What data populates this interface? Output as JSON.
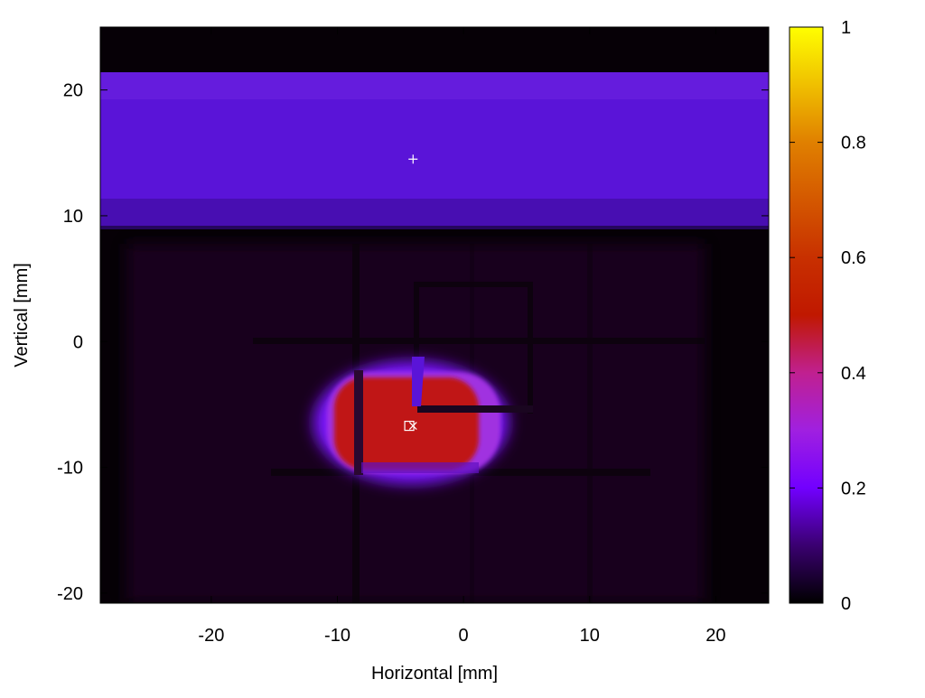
{
  "chart_data": {
    "type": "heatmap",
    "title": "",
    "xlabel": "Horizontal [mm]",
    "ylabel": "Vertical [mm]",
    "xlim": [
      -28.8,
      24.2
    ],
    "ylim": [
      -20.8,
      25.0
    ],
    "xticks": [
      -20,
      -10,
      0,
      10,
      20
    ],
    "xtick_labels": [
      "-20",
      "-10",
      "0",
      "10",
      "20"
    ],
    "yticks": [
      -20,
      -10,
      0,
      10,
      20
    ],
    "ytick_labels": [
      "-20",
      "-10",
      "0",
      "10",
      "20"
    ],
    "colorbar": {
      "range": [
        0,
        1
      ],
      "ticks": [
        0,
        0.2,
        0.4,
        0.6,
        0.8,
        1
      ],
      "tick_labels": [
        "0",
        "0.2",
        "0.4",
        "0.6",
        "0.8",
        "1"
      ],
      "colormap": [
        {
          "v": 0.0,
          "color": "#000000"
        },
        {
          "v": 0.1,
          "color": "#3a0070"
        },
        {
          "v": 0.2,
          "color": "#7200ff"
        },
        {
          "v": 0.3,
          "color": "#a020e0"
        },
        {
          "v": 0.4,
          "color": "#c02090"
        },
        {
          "v": 0.5,
          "color": "#c01800"
        },
        {
          "v": 0.6,
          "color": "#c83000"
        },
        {
          "v": 0.8,
          "color": "#e08000"
        },
        {
          "v": 1.0,
          "color": "#ffff00"
        }
      ]
    },
    "regions": [
      {
        "kind": "band",
        "x": [
          -28.8,
          24.2
        ],
        "y": [
          9.0,
          21.5
        ],
        "value": 0.22
      },
      {
        "kind": "background",
        "x": [
          -28.8,
          24.2
        ],
        "y": [
          -20.8,
          9.0
        ],
        "value": 0.05
      },
      {
        "kind": "hotspot",
        "center": [
          -4.0,
          -6.5
        ],
        "half_size": [
          5.5,
          4.5
        ],
        "value": 0.5
      }
    ],
    "markers": [
      {
        "symbol": "+",
        "x": -4.0,
        "y": 14.5
      },
      {
        "symbol": "x",
        "x": -4.0,
        "y": -6.7
      },
      {
        "symbol": "square",
        "x": -4.3,
        "y": -6.7
      }
    ]
  }
}
